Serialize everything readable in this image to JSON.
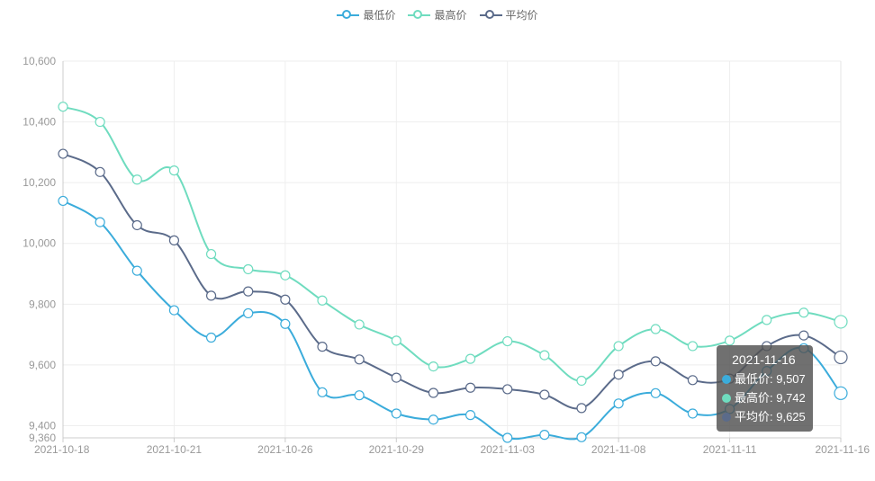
{
  "legend": {
    "min_label": "最低价",
    "max_label": "最高价",
    "avg_label": "平均价"
  },
  "colors": {
    "min": "#3bacdb",
    "max": "#6fdcbf",
    "avg": "#5b6b8a",
    "grid": "#eeeeee",
    "axis_text": "#999999"
  },
  "chart_data": {
    "type": "line",
    "smooth": true,
    "x": [
      "2021-10-18",
      "2021-10-19",
      "2021-10-20",
      "2021-10-21",
      "2021-10-22",
      "2021-10-25",
      "2021-10-26",
      "2021-10-27",
      "2021-10-28",
      "2021-10-29",
      "2021-11-01",
      "2021-11-02",
      "2021-11-03",
      "2021-11-04",
      "2021-11-05",
      "2021-11-08",
      "2021-11-09",
      "2021-11-10",
      "2021-11-11",
      "2021-11-12",
      "2021-11-15",
      "2021-11-16"
    ],
    "x_tick_labels": [
      "2021-10-18",
      "2021-10-21",
      "2021-10-26",
      "2021-10-29",
      "2021-11-03",
      "2021-11-08",
      "2021-11-11",
      "2021-11-16"
    ],
    "series": [
      {
        "name": "最低价",
        "values": [
          10140,
          10070,
          9910,
          9780,
          9690,
          9770,
          9735,
          9510,
          9500,
          9440,
          9420,
          9435,
          9360,
          9370,
          9362,
          9473,
          9507,
          9440,
          9455,
          9580,
          9655,
          9507
        ]
      },
      {
        "name": "最高价",
        "values": [
          10450,
          10400,
          10210,
          10240,
          9965,
          9915,
          9895,
          9812,
          9733,
          9680,
          9595,
          9620,
          9678,
          9632,
          9548,
          9662,
          9718,
          9662,
          9680,
          9748,
          9772,
          9742
        ]
      },
      {
        "name": "平均价",
        "values": [
          10295,
          10235,
          10060,
          10010,
          9828,
          9842,
          9815,
          9660,
          9618,
          9558,
          9508,
          9525,
          9520,
          9502,
          9458,
          9568,
          9612,
          9550,
          9555,
          9662,
          9697,
          9625
        ]
      }
    ],
    "y_ticks": [
      9360,
      9400,
      9600,
      9800,
      10000,
      10200,
      10400,
      10600
    ],
    "ylim": [
      9360,
      10600
    ]
  },
  "tooltip": {
    "date": "2021-11-16",
    "rows": [
      {
        "label": "最低价: 9,507"
      },
      {
        "label": "最高价: 9,742"
      },
      {
        "label": "平均价: 9,625"
      }
    ]
  }
}
